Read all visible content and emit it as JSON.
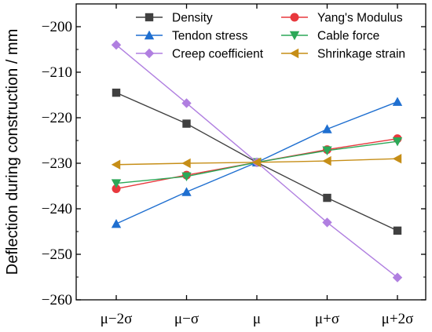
{
  "chart_data": {
    "type": "line",
    "title": "",
    "xlabel": "",
    "ylabel": "Deflection during construction / mm",
    "categories": [
      "μ−2σ",
      "μ−σ",
      "μ",
      "μ+σ",
      "μ+2σ"
    ],
    "ylim": [
      -260,
      -195
    ],
    "yticks": [
      -200,
      -210,
      -220,
      -230,
      -240,
      -250,
      -260
    ],
    "ytick_labels": [
      "−200",
      "−210",
      "−220",
      "−230",
      "−240",
      "−250",
      "−260"
    ],
    "grid": false,
    "legend_position": "top",
    "series": [
      {
        "name": "Density",
        "color": "#404040",
        "marker": "square",
        "values": [
          -214.5,
          -221.3,
          -229.8,
          -237.6,
          -244.8
        ]
      },
      {
        "name": "Yang's Modulus",
        "color": "#e8383d",
        "marker": "circle",
        "values": [
          -235.6,
          -232.6,
          -229.8,
          -227.0,
          -224.6
        ]
      },
      {
        "name": "Tendon stress",
        "color": "#1f6fd0",
        "marker": "triangle-up",
        "values": [
          -243.3,
          -236.3,
          -229.8,
          -222.5,
          -216.5
        ]
      },
      {
        "name": "Cable force",
        "color": "#2ca858",
        "marker": "triangle-down",
        "values": [
          -234.4,
          -232.9,
          -229.8,
          -227.2,
          -225.2
        ]
      },
      {
        "name": "Creep coefficient",
        "color": "#b07fe0",
        "marker": "diamond",
        "values": [
          -204.0,
          -216.8,
          -229.8,
          -243.0,
          -255.1
        ]
      },
      {
        "name": "Shrinkage strain",
        "color": "#c68e17",
        "marker": "triangle-left",
        "values": [
          -230.3,
          -230.0,
          -229.8,
          -229.5,
          -229.0
        ]
      }
    ]
  }
}
